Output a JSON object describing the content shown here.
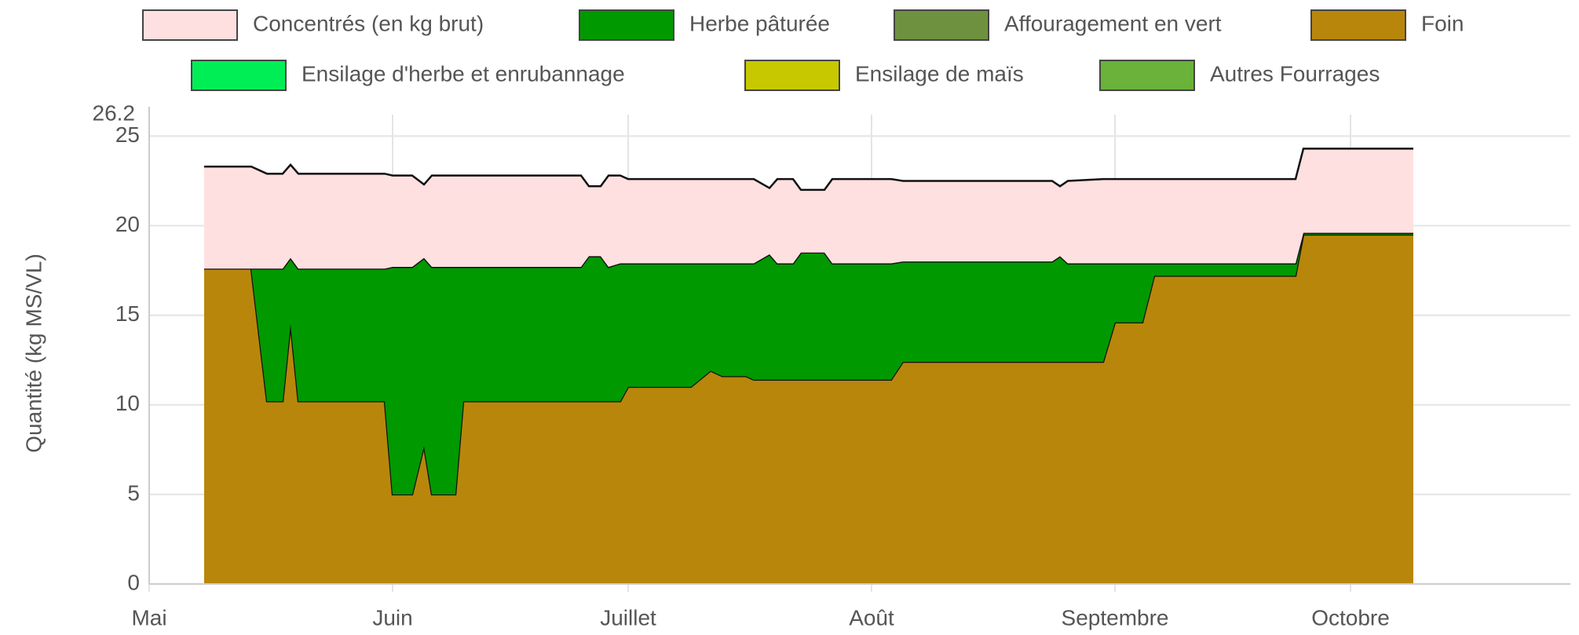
{
  "chart_data": {
    "type": "area",
    "stacked": true,
    "y_label": "Quantité (kg MS/VL)",
    "xlim": [
      0,
      181
    ],
    "xticks": [
      {
        "value": 0,
        "label": "Mai"
      },
      {
        "value": 31,
        "label": "Juin"
      },
      {
        "value": 61,
        "label": "Juillet"
      },
      {
        "value": 92,
        "label": "Août"
      },
      {
        "value": 123,
        "label": "Septembre"
      },
      {
        "value": 153,
        "label": "Octobre"
      }
    ],
    "ylim": [
      0,
      26.2
    ],
    "yticks": [
      0,
      5,
      10,
      15,
      20,
      25,
      26.2
    ],
    "grid": true,
    "legend": "top",
    "x": [
      7,
      13,
      15,
      17,
      18,
      19,
      30,
      31,
      33.5,
      35,
      36,
      39,
      40,
      55,
      56,
      57.5,
      58.5,
      60,
      61,
      69,
      71.5,
      73,
      76,
      77,
      79,
      80,
      82,
      83,
      86,
      87,
      94.5,
      96,
      115,
      116,
      117,
      121.5,
      123,
      126.5,
      128,
      146,
      147,
      161
    ],
    "series": [
      {
        "name": "Concentrés (en kg brut)",
        "color": "#ffe0e0",
        "values": [
          5.7,
          5.7,
          5.3,
          5.3,
          5.2,
          5.3,
          5.3,
          5.1,
          5.1,
          4.1,
          5.1,
          5.1,
          5.1,
          5.1,
          3.9,
          3.9,
          5.1,
          4.9,
          4.7,
          4.7,
          4.7,
          4.7,
          4.7,
          4.7,
          3.7,
          4.7,
          4.7,
          3.5,
          3.5,
          4.7,
          4.7,
          4.5,
          4.5,
          3.9,
          4.6,
          4.7,
          4.7,
          4.7,
          4.7,
          4.7,
          4.7,
          4.7
        ]
      },
      {
        "name": "Herbe pâturée",
        "color": "#009900",
        "values": [
          0,
          0,
          7.4,
          7.4,
          3.7,
          7.4,
          7.4,
          12.7,
          12.7,
          10.5,
          12.7,
          12.7,
          7.5,
          7.5,
          8.1,
          8.1,
          7.5,
          7.7,
          6.9,
          6.9,
          6,
          6.3,
          6.3,
          6.5,
          7,
          6.5,
          6.5,
          7.1,
          7.1,
          6.5,
          6.5,
          5.6,
          5.6,
          5.9,
          5.5,
          5.5,
          3.3,
          3.3,
          0.7,
          0.7,
          0.1,
          0.1
        ]
      },
      {
        "name": "Affouragement en vert",
        "color": "#6e9140",
        "values": [
          0,
          0,
          0,
          0,
          0,
          0,
          0,
          0,
          0,
          0,
          0,
          0,
          0,
          0,
          0,
          0,
          0,
          0,
          0,
          0,
          0,
          0,
          0,
          0,
          0,
          0,
          0,
          0,
          0,
          0,
          0,
          0,
          0,
          0,
          0,
          0,
          0,
          0,
          0,
          0,
          0,
          0
        ]
      },
      {
        "name": "Foin",
        "color": "#b8860b",
        "values": [
          17.6,
          17.6,
          10.2,
          10.2,
          14.5,
          10.2,
          10.2,
          5,
          5,
          7.7,
          5,
          5,
          10.2,
          10.2,
          10.2,
          10.2,
          10.2,
          10.2,
          11,
          11,
          11.9,
          11.6,
          11.6,
          11.4,
          11.4,
          11.4,
          11.4,
          11.4,
          11.4,
          11.4,
          11.4,
          12.4,
          12.4,
          12.4,
          12.4,
          12.4,
          14.6,
          14.6,
          17.2,
          17.2,
          19.5,
          19.5
        ]
      },
      {
        "name": "Ensilage d'herbe et enrubannage",
        "color": "#00ee55",
        "values": [
          0,
          0,
          0,
          0,
          0,
          0,
          0,
          0,
          0,
          0,
          0,
          0,
          0,
          0,
          0,
          0,
          0,
          0,
          0,
          0,
          0,
          0,
          0,
          0,
          0,
          0,
          0,
          0,
          0,
          0,
          0,
          0,
          0,
          0,
          0,
          0,
          0,
          0,
          0,
          0,
          0,
          0
        ]
      },
      {
        "name": "Ensilage de maïs",
        "color": "#c8c800",
        "values": [
          0,
          0,
          0,
          0,
          0,
          0,
          0,
          0,
          0,
          0,
          0,
          0,
          0,
          0,
          0,
          0,
          0,
          0,
          0,
          0,
          0,
          0,
          0,
          0,
          0,
          0,
          0,
          0,
          0,
          0,
          0,
          0,
          0,
          0,
          0,
          0,
          0,
          0,
          0,
          0,
          0,
          0
        ]
      },
      {
        "name": "Autres Fourrages",
        "color": "#6ab23a",
        "values": [
          0,
          0,
          0,
          0,
          0,
          0,
          0,
          0,
          0,
          0,
          0,
          0,
          0,
          0,
          0,
          0,
          0,
          0,
          0,
          0,
          0,
          0,
          0,
          0,
          0,
          0,
          0,
          0,
          0,
          0,
          0,
          0,
          0,
          0,
          0,
          0,
          0,
          0,
          0,
          0,
          0,
          0
        ]
      }
    ]
  }
}
